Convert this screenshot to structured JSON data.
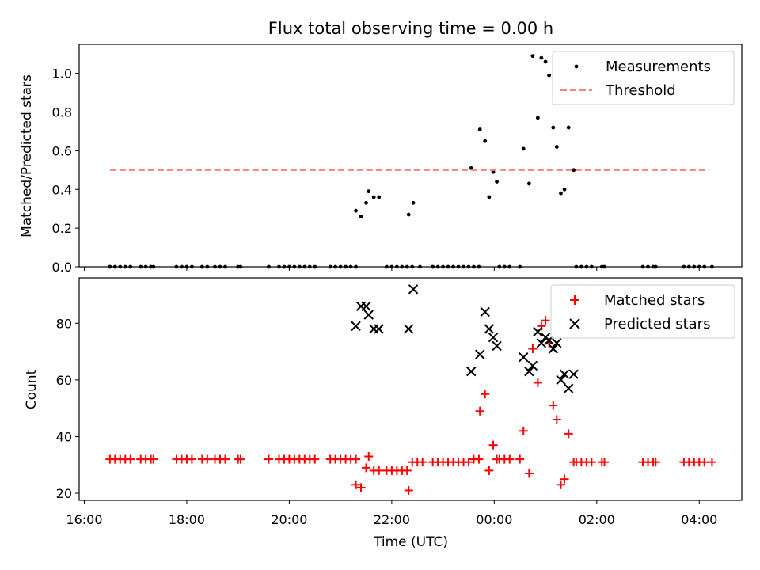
{
  "chart_data": [
    {
      "panel": "top",
      "type": "scatter",
      "title": "Flux total observing time = 0.00 h",
      "xlabel": "",
      "ylabel": "Matched/Predicted stars",
      "xlim": [
        15.9,
        28.83
      ],
      "ylim": [
        0.0,
        1.15
      ],
      "yticks": [
        0.0,
        0.2,
        0.4,
        0.6,
        0.8,
        1.0
      ],
      "ytick_labels": [
        "0.0",
        "0.2",
        "0.4",
        "0.6",
        "0.8",
        "1.0"
      ],
      "legend_position": "top-right",
      "colors": {
        "measurements": "#000000",
        "threshold": "#ff8080"
      },
      "series": [
        {
          "name": "Measurements",
          "legend_label": "Measurements",
          "points": [
            [
              16.5,
              0
            ],
            [
              16.6,
              0
            ],
            [
              16.7,
              0
            ],
            [
              16.8,
              0
            ],
            [
              16.9,
              0
            ],
            [
              17.1,
              0
            ],
            [
              17.2,
              0
            ],
            [
              17.3,
              0
            ],
            [
              17.35,
              0
            ],
            [
              17.8,
              0
            ],
            [
              17.9,
              0
            ],
            [
              18.0,
              0
            ],
            [
              18.1,
              0
            ],
            [
              18.3,
              0
            ],
            [
              18.4,
              0
            ],
            [
              18.55,
              0
            ],
            [
              18.65,
              0
            ],
            [
              18.75,
              0
            ],
            [
              19.0,
              0
            ],
            [
              19.05,
              0
            ],
            [
              19.6,
              0
            ],
            [
              19.8,
              0
            ],
            [
              19.9,
              0
            ],
            [
              20.0,
              0
            ],
            [
              20.1,
              0
            ],
            [
              20.2,
              0
            ],
            [
              20.3,
              0
            ],
            [
              20.4,
              0
            ],
            [
              20.5,
              0
            ],
            [
              20.8,
              0
            ],
            [
              20.9,
              0
            ],
            [
              21.0,
              0
            ],
            [
              21.1,
              0
            ],
            [
              21.2,
              0
            ],
            [
              21.3,
              0
            ],
            [
              21.3,
              0.29
            ],
            [
              21.4,
              0.26
            ],
            [
              21.5,
              0.33
            ],
            [
              21.55,
              0.39
            ],
            [
              21.65,
              0.36
            ],
            [
              21.75,
              0.36
            ],
            [
              21.9,
              0
            ],
            [
              22.0,
              0
            ],
            [
              22.1,
              0
            ],
            [
              22.2,
              0
            ],
            [
              22.3,
              0
            ],
            [
              22.4,
              0
            ],
            [
              22.33,
              0.27
            ],
            [
              22.42,
              0.33
            ],
            [
              22.55,
              0
            ],
            [
              22.8,
              0
            ],
            [
              22.9,
              0
            ],
            [
              23.0,
              0
            ],
            [
              23.1,
              0
            ],
            [
              23.2,
              0
            ],
            [
              23.3,
              0
            ],
            [
              23.4,
              0
            ],
            [
              23.5,
              0
            ],
            [
              23.6,
              0
            ],
            [
              23.7,
              0
            ],
            [
              23.55,
              0.51
            ],
            [
              23.72,
              0.71
            ],
            [
              23.82,
              0.65
            ],
            [
              23.9,
              0.36
            ],
            [
              23.98,
              0.49
            ],
            [
              24.05,
              0.44
            ],
            [
              24.1,
              0
            ],
            [
              24.2,
              0
            ],
            [
              24.3,
              0
            ],
            [
              24.5,
              0
            ],
            [
              24.57,
              0.61
            ],
            [
              24.68,
              0.43
            ],
            [
              24.75,
              1.09
            ],
            [
              24.85,
              0.77
            ],
            [
              24.92,
              1.08
            ],
            [
              25.0,
              1.06
            ],
            [
              25.07,
              0.99
            ],
            [
              25.15,
              0.72
            ],
            [
              25.22,
              0.62
            ],
            [
              25.3,
              0.38
            ],
            [
              25.37,
              0.4
            ],
            [
              25.45,
              0.72
            ],
            [
              25.55,
              0.5
            ],
            [
              25.6,
              0
            ],
            [
              25.7,
              0
            ],
            [
              25.8,
              0
            ],
            [
              25.9,
              0
            ],
            [
              26.1,
              0
            ],
            [
              26.15,
              0
            ],
            [
              26.9,
              0
            ],
            [
              27.0,
              0
            ],
            [
              27.1,
              0
            ],
            [
              27.15,
              0
            ],
            [
              27.7,
              0
            ],
            [
              27.8,
              0
            ],
            [
              27.9,
              0
            ],
            [
              28.0,
              0
            ],
            [
              28.1,
              0
            ],
            [
              28.25,
              0
            ]
          ]
        },
        {
          "name": "Threshold",
          "legend_label": "Threshold",
          "style": "dashed",
          "points": [
            [
              16.5,
              0.5
            ],
            [
              28.2,
              0.5
            ]
          ]
        }
      ]
    },
    {
      "panel": "bottom",
      "type": "scatter",
      "title": "",
      "xlabel": "Time (UTC)",
      "ylabel": "Count",
      "xlim": [
        15.9,
        28.83
      ],
      "ylim": [
        17.5,
        96.0
      ],
      "yticks": [
        20,
        40,
        60,
        80
      ],
      "ytick_labels": [
        "20",
        "40",
        "60",
        "80"
      ],
      "xticks": [
        16,
        18,
        20,
        22,
        24,
        26,
        28
      ],
      "xtick_labels": [
        "16:00",
        "18:00",
        "20:00",
        "22:00",
        "00:00",
        "02:00",
        "04:00"
      ],
      "legend_position": "top-right",
      "colors": {
        "matched": "#ff0000",
        "predicted": "#000000"
      },
      "series": [
        {
          "name": "Matched stars",
          "legend_label": "Matched stars",
          "marker": "plus",
          "points": [
            [
              16.5,
              32
            ],
            [
              16.6,
              32
            ],
            [
              16.7,
              32
            ],
            [
              16.8,
              32
            ],
            [
              16.9,
              32
            ],
            [
              17.1,
              32
            ],
            [
              17.2,
              32
            ],
            [
              17.3,
              32
            ],
            [
              17.35,
              32
            ],
            [
              17.8,
              32
            ],
            [
              17.9,
              32
            ],
            [
              18.0,
              32
            ],
            [
              18.1,
              32
            ],
            [
              18.3,
              32
            ],
            [
              18.4,
              32
            ],
            [
              18.55,
              32
            ],
            [
              18.65,
              32
            ],
            [
              18.75,
              32
            ],
            [
              19.0,
              32
            ],
            [
              19.05,
              32
            ],
            [
              19.6,
              32
            ],
            [
              19.8,
              32
            ],
            [
              19.9,
              32
            ],
            [
              20.0,
              32
            ],
            [
              20.1,
              32
            ],
            [
              20.2,
              32
            ],
            [
              20.3,
              32
            ],
            [
              20.4,
              32
            ],
            [
              20.5,
              32
            ],
            [
              20.8,
              32
            ],
            [
              20.9,
              32
            ],
            [
              21.0,
              32
            ],
            [
              21.1,
              32
            ],
            [
              21.2,
              32
            ],
            [
              21.3,
              32
            ],
            [
              21.3,
              23
            ],
            [
              21.4,
              22
            ],
            [
              21.5,
              29
            ],
            [
              21.55,
              33
            ],
            [
              21.65,
              28
            ],
            [
              21.75,
              28
            ],
            [
              21.9,
              28
            ],
            [
              22.0,
              28
            ],
            [
              22.1,
              28
            ],
            [
              22.2,
              28
            ],
            [
              22.3,
              28
            ],
            [
              22.4,
              31
            ],
            [
              22.33,
              21
            ],
            [
              22.5,
              31
            ],
            [
              22.6,
              31
            ],
            [
              22.8,
              31
            ],
            [
              22.9,
              31
            ],
            [
              23.0,
              31
            ],
            [
              23.1,
              31
            ],
            [
              23.2,
              31
            ],
            [
              23.3,
              31
            ],
            [
              23.4,
              31
            ],
            [
              23.5,
              31
            ],
            [
              23.6,
              32
            ],
            [
              23.7,
              32
            ],
            [
              23.72,
              49
            ],
            [
              23.82,
              55
            ],
            [
              23.9,
              28
            ],
            [
              23.98,
              37
            ],
            [
              24.05,
              32
            ],
            [
              24.1,
              32
            ],
            [
              24.2,
              32
            ],
            [
              24.3,
              32
            ],
            [
              24.5,
              32
            ],
            [
              24.57,
              42
            ],
            [
              24.68,
              27
            ],
            [
              24.75,
              71
            ],
            [
              24.85,
              59
            ],
            [
              24.92,
              79
            ],
            [
              25.0,
              81
            ],
            [
              25.07,
              73
            ],
            [
              25.15,
              51
            ],
            [
              25.22,
              46
            ],
            [
              25.3,
              23
            ],
            [
              25.37,
              25
            ],
            [
              25.45,
              41
            ],
            [
              25.55,
              31
            ],
            [
              25.6,
              31
            ],
            [
              25.7,
              31
            ],
            [
              25.8,
              31
            ],
            [
              25.9,
              31
            ],
            [
              26.1,
              31
            ],
            [
              26.15,
              31
            ],
            [
              26.9,
              31
            ],
            [
              27.0,
              31
            ],
            [
              27.1,
              31
            ],
            [
              27.15,
              31
            ],
            [
              27.7,
              31
            ],
            [
              27.8,
              31
            ],
            [
              27.9,
              31
            ],
            [
              28.0,
              31
            ],
            [
              28.1,
              31
            ],
            [
              28.25,
              31
            ]
          ]
        },
        {
          "name": "Predicted stars",
          "legend_label": "Predicted stars",
          "marker": "x",
          "points": [
            [
              21.3,
              79
            ],
            [
              21.4,
              86
            ],
            [
              21.5,
              86
            ],
            [
              21.55,
              83
            ],
            [
              21.65,
              78
            ],
            [
              21.75,
              78
            ],
            [
              22.33,
              78
            ],
            [
              22.42,
              92
            ],
            [
              23.55,
              63
            ],
            [
              23.72,
              69
            ],
            [
              23.82,
              84
            ],
            [
              23.9,
              78
            ],
            [
              23.98,
              75
            ],
            [
              24.05,
              72
            ],
            [
              24.57,
              68
            ],
            [
              24.68,
              63
            ],
            [
              24.75,
              65
            ],
            [
              24.85,
              77
            ],
            [
              24.92,
              73
            ],
            [
              25.0,
              75
            ],
            [
              25.07,
              74
            ],
            [
              25.15,
              71
            ],
            [
              25.22,
              73
            ],
            [
              25.3,
              60
            ],
            [
              25.37,
              62
            ],
            [
              25.45,
              57
            ],
            [
              25.55,
              62
            ]
          ]
        }
      ]
    }
  ]
}
